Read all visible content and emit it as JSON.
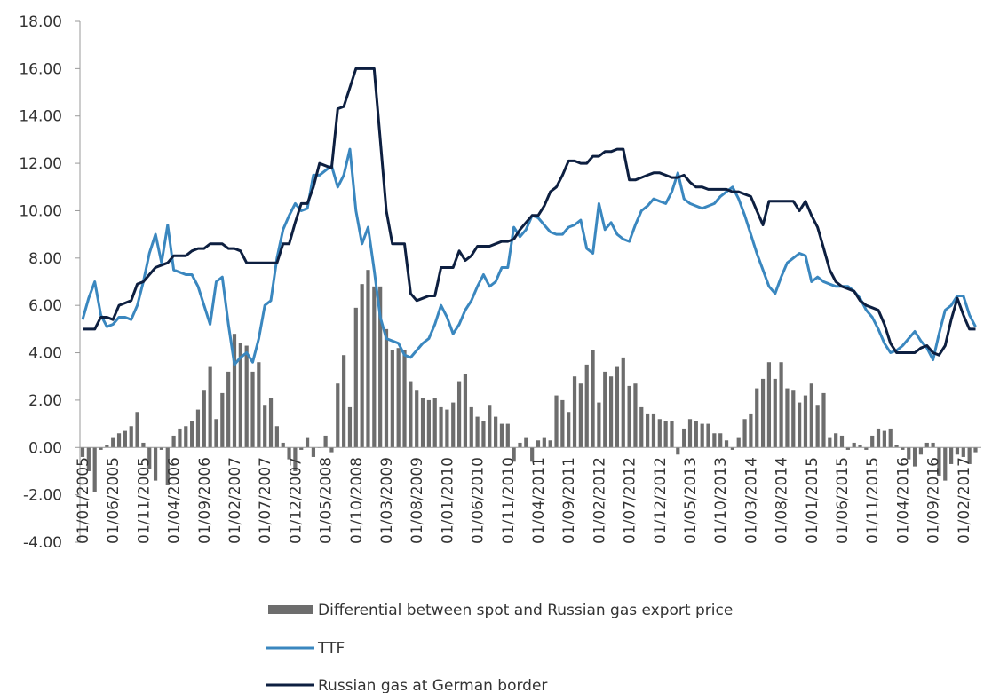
{
  "chart_data": {
    "type": "bar-line",
    "categories": [
      "01/01/2005",
      null,
      null,
      null,
      null,
      "01/06/2005",
      null,
      null,
      null,
      null,
      "01/11/2005",
      null,
      null,
      null,
      null,
      "01/04/2006",
      null,
      null,
      null,
      null,
      "01/09/2006",
      null,
      null,
      null,
      null,
      "01/02/2007",
      null,
      null,
      null,
      null,
      "01/07/2007",
      null,
      null,
      null,
      null,
      "01/12/2007",
      null,
      null,
      null,
      null,
      "01/05/2008",
      null,
      null,
      null,
      null,
      "01/10/2008",
      null,
      null,
      null,
      null,
      "01/03/2009",
      null,
      null,
      null,
      null,
      "01/08/2009",
      null,
      null,
      null,
      null,
      "01/01/2010",
      null,
      null,
      null,
      null,
      "01/06/2010",
      null,
      null,
      null,
      null,
      "01/11/2010",
      null,
      null,
      null,
      null,
      "01/04/2011",
      null,
      null,
      null,
      null,
      "01/09/2011",
      null,
      null,
      null,
      null,
      "01/02/2012",
      null,
      null,
      null,
      null,
      "01/07/2012",
      null,
      null,
      null,
      null,
      "01/12/2012",
      null,
      null,
      null,
      null,
      "01/05/2013",
      null,
      null,
      null,
      null,
      "01/10/2013",
      null,
      null,
      null,
      null,
      "01/03/2014",
      null,
      null,
      null,
      null,
      "01/08/2014",
      null,
      null,
      null,
      null,
      "01/01/2015",
      null,
      null,
      null,
      null,
      "01/06/2015",
      null,
      null,
      null,
      null,
      "01/11/2015",
      null,
      null,
      null,
      null,
      "01/04/2016",
      null,
      null,
      null,
      null,
      "01/09/2016",
      null,
      null,
      null,
      null,
      "01/02/2017",
      null,
      null
    ],
    "series": [
      {
        "name": "Differential between spot and Russian gas export price",
        "type": "bar",
        "color": "#6d6d6d",
        "values": [
          -0.4,
          -1.0,
          -1.9,
          -0.1,
          0.1,
          0.4,
          0.6,
          0.7,
          0.9,
          1.5,
          0.2,
          -0.9,
          -1.4,
          -0.1,
          -1.6,
          0.5,
          0.8,
          0.9,
          1.1,
          1.6,
          2.4,
          3.4,
          1.2,
          2.3,
          3.2,
          4.8,
          4.4,
          4.3,
          3.2,
          3.6,
          1.8,
          2.1,
          0.9,
          0.2,
          -0.5,
          -1.0,
          -0.1,
          0.4,
          -0.4,
          0.0,
          0.5,
          -0.2,
          2.7,
          3.9,
          1.7,
          5.9,
          6.9,
          7.5,
          6.8,
          6.8,
          5.0,
          4.1,
          4.2,
          4.1,
          2.8,
          2.4,
          2.1,
          2.0,
          2.1,
          1.7,
          1.6,
          1.9,
          2.8,
          3.1,
          1.7,
          1.3,
          1.1,
          1.8,
          1.3,
          1.0,
          1.0,
          -0.6,
          0.2,
          0.4,
          -0.6,
          0.3,
          0.4,
          0.3,
          2.2,
          2.0,
          1.5,
          3.0,
          2.7,
          3.5,
          4.1,
          1.9,
          3.2,
          3.0,
          3.4,
          3.8,
          2.6,
          2.7,
          1.7,
          1.4,
          1.4,
          1.2,
          1.1,
          1.1,
          -0.3,
          0.8,
          1.2,
          1.1,
          1.0,
          1.0,
          0.6,
          0.6,
          0.3,
          -0.1,
          0.4,
          1.2,
          1.4,
          2.5,
          2.9,
          3.6,
          2.9,
          3.6,
          2.5,
          2.4,
          1.9,
          2.2,
          2.7,
          1.8,
          2.3,
          0.4,
          0.6,
          0.5,
          -0.1,
          0.2,
          0.1,
          -0.1,
          0.5,
          0.8,
          0.7,
          0.8,
          0.1,
          -0.1,
          -0.5,
          -0.8,
          -0.3,
          0.2,
          0.2,
          -1.2,
          -1.4,
          -0.7,
          -0.3,
          -0.4,
          -0.7,
          -0.2
        ]
      },
      {
        "name": "TTF",
        "type": "line",
        "color": "#3a87bf",
        "values": [
          5.4,
          6.3,
          7.0,
          5.6,
          5.1,
          5.2,
          5.5,
          5.5,
          5.4,
          6.0,
          7.0,
          8.2,
          9.0,
          7.8,
          9.4,
          7.5,
          7.4,
          7.3,
          7.3,
          6.8,
          6.0,
          5.2,
          7.0,
          7.2,
          5.2,
          3.5,
          3.8,
          4.0,
          3.6,
          4.6,
          6.0,
          6.2,
          8.0,
          9.2,
          9.8,
          10.3,
          10.0,
          10.1,
          11.5,
          11.5,
          11.7,
          11.9,
          11.0,
          11.5,
          12.6,
          10.0,
          8.6,
          9.3,
          7.5,
          5.5,
          4.6,
          4.5,
          4.4,
          3.9,
          3.8,
          4.1,
          4.4,
          4.6,
          5.2,
          6.0,
          5.5,
          4.8,
          5.2,
          5.8,
          6.2,
          6.8,
          7.3,
          6.8,
          7.0,
          7.6,
          7.6,
          9.3,
          8.9,
          9.2,
          9.8,
          9.7,
          9.4,
          9.1,
          9.0,
          9.0,
          9.3,
          9.4,
          9.6,
          8.4,
          8.2,
          10.3,
          9.2,
          9.5,
          9.0,
          8.8,
          8.7,
          9.4,
          10.0,
          10.2,
          10.5,
          10.4,
          10.3,
          10.8,
          11.6,
          10.5,
          10.3,
          10.2,
          10.1,
          10.2,
          10.3,
          10.6,
          10.8,
          11.0,
          10.5,
          9.8,
          9.0,
          8.2,
          7.5,
          6.8,
          6.5,
          7.2,
          7.8,
          8.0,
          8.2,
          8.1,
          7.0,
          7.2,
          7.0,
          6.9,
          6.8,
          6.8,
          6.8,
          6.6,
          6.3,
          5.8,
          5.5,
          5.0,
          4.4,
          4.0,
          4.1,
          4.3,
          4.6,
          4.9,
          4.5,
          4.2,
          3.7,
          4.8,
          5.8,
          6.0,
          6.4,
          6.4,
          5.6,
          5.1
        ]
      },
      {
        "name": "Russian gas at German border",
        "type": "line",
        "color": "#0d1f40",
        "values": [
          5.0,
          5.0,
          5.0,
          5.5,
          5.5,
          5.4,
          6.0,
          6.1,
          6.2,
          6.9,
          7.0,
          7.3,
          7.6,
          7.7,
          7.8,
          8.1,
          8.1,
          8.1,
          8.3,
          8.4,
          8.4,
          8.6,
          8.6,
          8.6,
          8.4,
          8.4,
          8.3,
          7.8,
          7.8,
          7.8,
          7.8,
          7.8,
          7.8,
          8.6,
          8.6,
          9.5,
          10.3,
          10.3,
          11.0,
          12.0,
          11.9,
          11.8,
          14.3,
          14.4,
          15.2,
          16.0,
          16.0,
          16.0,
          16.0,
          13.0,
          10.0,
          8.6,
          8.6,
          8.6,
          6.5,
          6.2,
          6.3,
          6.4,
          6.4,
          7.6,
          7.6,
          7.6,
          8.3,
          7.9,
          8.1,
          8.5,
          8.5,
          8.5,
          8.6,
          8.7,
          8.7,
          8.8,
          9.2,
          9.5,
          9.8,
          9.8,
          10.2,
          10.8,
          11.0,
          11.5,
          12.1,
          12.1,
          12.0,
          12.0,
          12.3,
          12.3,
          12.5,
          12.5,
          12.6,
          12.6,
          11.3,
          11.3,
          11.4,
          11.5,
          11.6,
          11.6,
          11.5,
          11.4,
          11.4,
          11.5,
          11.2,
          11.0,
          11.0,
          10.9,
          10.9,
          10.9,
          10.9,
          10.8,
          10.8,
          10.7,
          10.6,
          10.0,
          9.4,
          10.4,
          10.4,
          10.4,
          10.4,
          10.4,
          10.0,
          10.4,
          9.8,
          9.3,
          8.4,
          7.5,
          7.0,
          6.8,
          6.7,
          6.6,
          6.2,
          6.0,
          5.9,
          5.8,
          5.2,
          4.4,
          4.0,
          4.0,
          4.0,
          4.0,
          4.2,
          4.3,
          4.0,
          3.9,
          4.3,
          5.4,
          6.3,
          5.6,
          5.0,
          5.0
        ]
      }
    ],
    "ylim": [
      -4,
      18
    ],
    "yticks": [
      {
        "value": -4,
        "label": "-4.00"
      },
      {
        "value": -2,
        "label": "-2.00"
      },
      {
        "value": 0,
        "label": "0.00"
      },
      {
        "value": 2,
        "label": "2.00"
      },
      {
        "value": 4,
        "label": "4.00"
      },
      {
        "value": 6,
        "label": "6.00"
      },
      {
        "value": 8,
        "label": "8.00"
      },
      {
        "value": 10,
        "label": "10.00"
      },
      {
        "value": 12,
        "label": "12.00"
      },
      {
        "value": 14,
        "label": "14.00"
      },
      {
        "value": 16,
        "label": "16.00"
      },
      {
        "value": 18,
        "label": "18.00"
      }
    ],
    "grid": false,
    "legend": "bottom"
  }
}
